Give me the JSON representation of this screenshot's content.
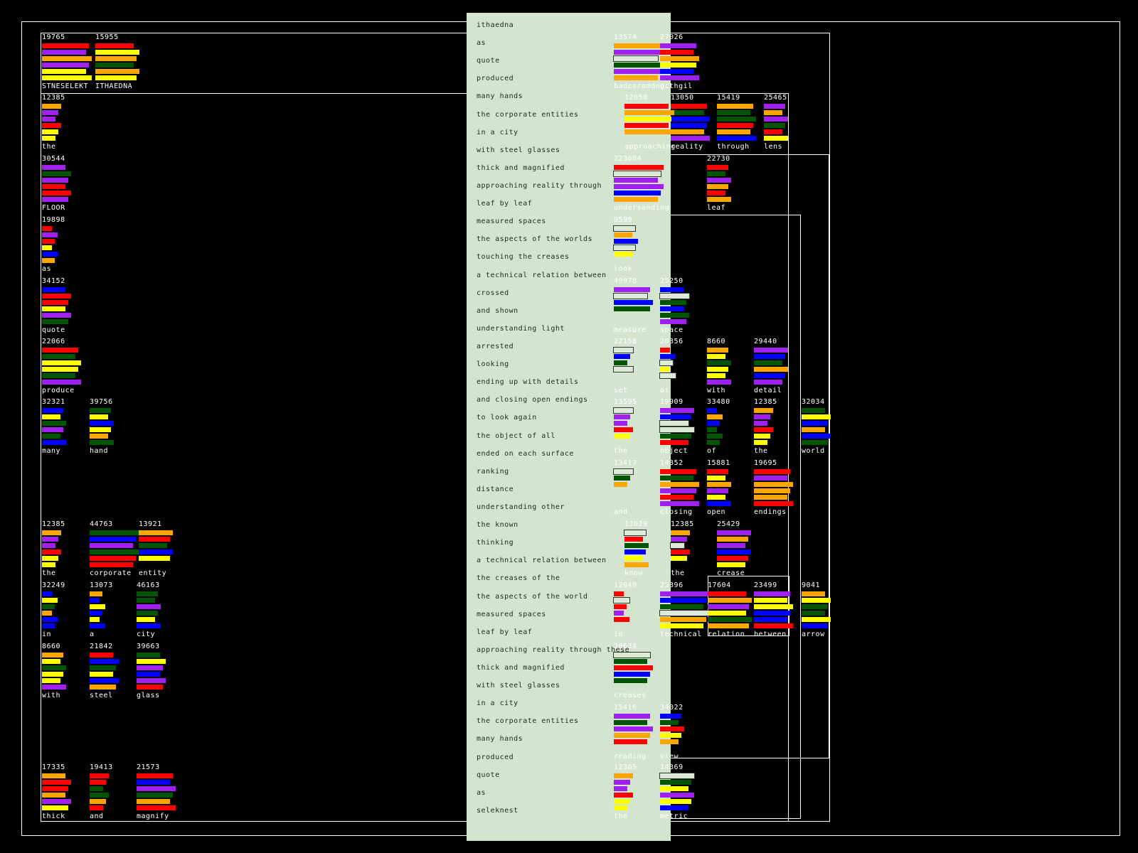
{
  "palette": {
    "R": "#ff0000",
    "O": "#ffa500",
    "Y": "#ffff00",
    "G": "#005500",
    "B": "#0000ff",
    "P": "#a020f0",
    "W": "#dcebd8"
  },
  "words": [
    {
      "num": "19765",
      "label": "STNESELEKT",
      "colors": [
        "R",
        "P",
        "O",
        "P",
        "Y",
        "Y"
      ]
    },
    {
      "num": "15955",
      "label": "ITHAEDNA",
      "colors": [
        "R",
        "Y",
        "O",
        "G",
        "O",
        "Y"
      ]
    },
    {
      "num": "12385",
      "label": "the",
      "colors": [
        "O",
        "P",
        "P",
        "R",
        "Y",
        "Y"
      ]
    },
    {
      "num": "30544",
      "label": "FLOOR",
      "colors": [
        "P",
        "G",
        "P",
        "R",
        "R",
        "P"
      ]
    },
    {
      "num": "19898",
      "label": "as",
      "colors": [
        "R",
        "P",
        "R",
        "Y",
        "B",
        "O"
      ]
    },
    {
      "num": "34152",
      "label": "quote",
      "colors": [
        "B",
        "R",
        "R",
        "Y",
        "P",
        "G"
      ]
    },
    {
      "num": "22066",
      "label": "produce",
      "colors": [
        "R",
        "G",
        "Y",
        "Y",
        "G",
        "P"
      ]
    },
    {
      "num": "32321",
      "label": "many",
      "colors": [
        "B",
        "Y",
        "G",
        "P",
        "G",
        "B"
      ]
    },
    {
      "num": "39756",
      "label": "hand",
      "colors": [
        "G",
        "Y",
        "B",
        "Y",
        "O",
        "G"
      ]
    },
    {
      "num": "12385",
      "label": "the",
      "colors": [
        "O",
        "P",
        "P",
        "R",
        "Y",
        "Y"
      ]
    },
    {
      "num": "44763",
      "label": "corporate",
      "colors": [
        "G",
        "B",
        "P",
        "G",
        "R",
        "R"
      ]
    },
    {
      "num": "13921",
      "label": "entity",
      "colors": [
        "O",
        "R",
        "G",
        "B",
        "Y"
      ]
    },
    {
      "num": "32249",
      "label": "in",
      "colors": [
        "B",
        "Y",
        "G",
        "O",
        "B",
        "B"
      ]
    },
    {
      "num": "13073",
      "label": "a",
      "colors": [
        "O",
        "B",
        "Y",
        "B",
        "Y",
        "B"
      ]
    },
    {
      "num": "46163",
      "label": "city",
      "colors": [
        "G",
        "G",
        "P",
        "G",
        "Y",
        "B"
      ]
    },
    {
      "num": "8660",
      "label": "with",
      "colors": [
        "O",
        "Y",
        "G",
        "Y",
        "Y",
        "P"
      ]
    },
    {
      "num": "21842",
      "label": "steel",
      "colors": [
        "R",
        "B",
        "G",
        "Y",
        "B",
        "O"
      ]
    },
    {
      "num": "39663",
      "label": "glass",
      "colors": [
        "G",
        "Y",
        "P",
        "B",
        "P",
        "R"
      ]
    },
    {
      "num": "17335",
      "label": "thick",
      "colors": [
        "O",
        "R",
        "R",
        "O",
        "P",
        "Y"
      ]
    },
    {
      "num": "19413",
      "label": "and",
      "colors": [
        "R",
        "R",
        "G",
        "G",
        "O",
        "R"
      ]
    },
    {
      "num": "21573",
      "label": "magnify",
      "colors": [
        "R",
        "B",
        "P",
        "G",
        "O",
        "R"
      ]
    },
    {
      "num": "15419",
      "label": "through",
      "colors": [
        "O",
        "G",
        "G",
        "R",
        "O",
        "B"
      ]
    },
    {
      "num": "25465",
      "label": "lens",
      "colors": [
        "P",
        "O",
        "P",
        "G",
        "R",
        "Y"
      ]
    },
    {
      "num": "22730",
      "label": "leaf",
      "colors": [
        "R",
        "G",
        "P",
        "O",
        "R",
        "O"
      ]
    },
    {
      "num": "8660",
      "label": "with",
      "colors": [
        "O",
        "Y",
        "G",
        "Y",
        "Y",
        "P"
      ]
    },
    {
      "num": "29440",
      "label": "detail",
      "colors": [
        "P",
        "B",
        "G",
        "O",
        "B",
        "P"
      ]
    },
    {
      "num": "33480",
      "label": "of",
      "colors": [
        "B",
        "O",
        "B",
        "G",
        "G",
        "G"
      ]
    },
    {
      "num": "12385",
      "label": "the",
      "colors": [
        "O",
        "P",
        "P",
        "R",
        "Y",
        "Y"
      ]
    },
    {
      "num": "32034",
      "label": "world",
      "colors": [
        "G",
        "Y",
        "B",
        "O",
        "B",
        "G"
      ]
    },
    {
      "num": "15881",
      "label": "open",
      "colors": [
        "R",
        "Y",
        "O",
        "P",
        "Y",
        "B"
      ]
    },
    {
      "num": "19695",
      "label": "endings",
      "colors": [
        "R",
        "P",
        "O",
        "O",
        "O",
        "R"
      ]
    },
    {
      "num": "25429",
      "label": "crease",
      "colors": [
        "P",
        "O",
        "P",
        "B",
        "R",
        "Y"
      ]
    },
    {
      "num": "23499",
      "label": "between",
      "colors": [
        "P",
        "Y",
        "Y",
        "B",
        "B",
        "R"
      ]
    },
    {
      "num": "9041",
      "label": "arrow",
      "colors": [
        "O",
        "Y",
        "G",
        "G",
        "Y",
        "B"
      ]
    }
  ],
  "panel_lines": [
    "ithaedna",
    "as",
    "quote",
    "produced",
    "many hands",
    "the corporate entities",
    "in a city",
    "with steel glasses",
    "thick and magnified",
    "approaching reality through",
    "leaf by leaf",
    "measured spaces",
    "the aspects of the worlds",
    "touching the creases",
    "a technical relation between",
    "crossed",
    "and shown",
    "understanding light",
    "arrested",
    "looking",
    "ending up with details",
    "and closing open endings",
    "to look again",
    "the object of all",
    "ended on each surface",
    "ranking",
    "distance",
    "understanding other",
    "the known",
    "thinking",
    "a technical relation between",
    "the creases of the",
    "the aspects of the world",
    "measured spaces",
    "leaf by leaf",
    "approaching reality through these",
    "thick and magnified",
    "with steel glasses",
    "in a city",
    "the corporate entities",
    "many hands",
    "produced",
    "quote",
    "as",
    "seleknest"
  ],
  "panel_words": [
    {
      "num": "13574",
      "label": "badcsramdnoc",
      "colors": [
        "O",
        "P",
        "W",
        "G",
        "P",
        "O"
      ]
    },
    {
      "num": "27026",
      "label": "g.thgil",
      "colors": [
        "P",
        "R",
        "O",
        "Y",
        "B",
        "P"
      ]
    },
    {
      "num": "13050",
      "label": "reality",
      "colors": [
        "R",
        "G",
        "B",
        "B",
        "O",
        "P"
      ]
    },
    {
      "num": "12058",
      "label": "approaching",
      "colors": [
        "R",
        "O",
        "Y",
        "R",
        "O"
      ]
    },
    {
      "num": "223084",
      "label": "undersanding",
      "colors": [
        "R",
        "W",
        "P",
        "P",
        "B",
        "O"
      ]
    },
    {
      "num": "9599",
      "label": "look",
      "colors": [
        "W",
        "O",
        "B",
        "W",
        "Y"
      ]
    },
    {
      "num": "49978",
      "label": "measure",
      "colors": [
        "P",
        "W",
        "B",
        "G"
      ]
    },
    {
      "num": "25250",
      "label": "space",
      "colors": [
        "B",
        "W",
        "G",
        "B",
        "G",
        "P"
      ]
    },
    {
      "num": "22158",
      "label": "set",
      "colors": [
        "W",
        "B",
        "G",
        "W"
      ]
    },
    {
      "num": "20356",
      "label": "at",
      "colors": [
        "R",
        "B",
        "W",
        "Y",
        "W"
      ]
    },
    {
      "num": "13595",
      "label": "the",
      "colors": [
        "W",
        "P",
        "P",
        "R",
        "Y"
      ]
    },
    {
      "num": "19909",
      "label": "object",
      "colors": [
        "P",
        "B",
        "W",
        "W",
        "G",
        "R"
      ]
    },
    {
      "num": "13417",
      "label": "and",
      "colors": [
        "W",
        "G",
        "O"
      ]
    },
    {
      "num": "14352",
      "label": "closing",
      "colors": [
        "R",
        "G",
        "O",
        "P",
        "R",
        "P"
      ]
    },
    {
      "num": "13029",
      "label": "know",
      "colors": [
        "W",
        "R",
        "G",
        "B",
        "Y",
        "O"
      ]
    },
    {
      "num": "12385",
      "label": "the",
      "colors": [
        "O",
        "P",
        "W",
        "R",
        "Y"
      ]
    },
    {
      "num": "12049",
      "label": "in",
      "colors": [
        "R",
        "W",
        "R",
        "P",
        "R"
      ]
    },
    {
      "num": "25396",
      "label": "technical",
      "colors": [
        "P",
        "B",
        "G",
        "W",
        "O",
        "Y"
      ]
    },
    {
      "num": "17604",
      "label": "relation",
      "colors": [
        "R",
        "O",
        "P",
        "Y",
        "G",
        "O"
      ]
    },
    {
      "num": "28634",
      "label": "creases",
      "colors": [
        "W",
        "G",
        "R",
        "B",
        "G"
      ]
    },
    {
      "num": "15416",
      "label": "reading",
      "colors": [
        "P",
        "G",
        "P",
        "O",
        "R"
      ]
    },
    {
      "num": "34022",
      "label": "view",
      "colors": [
        "B",
        "G",
        "R",
        "Y",
        "O"
      ]
    },
    {
      "num": "12385",
      "label": "the",
      "colors": [
        "O",
        "P",
        "P",
        "R",
        "Y",
        "Y"
      ]
    },
    {
      "num": "14369",
      "label": "metric",
      "colors": [
        "W",
        "G",
        "Y",
        "P",
        "Y",
        "B"
      ]
    }
  ]
}
